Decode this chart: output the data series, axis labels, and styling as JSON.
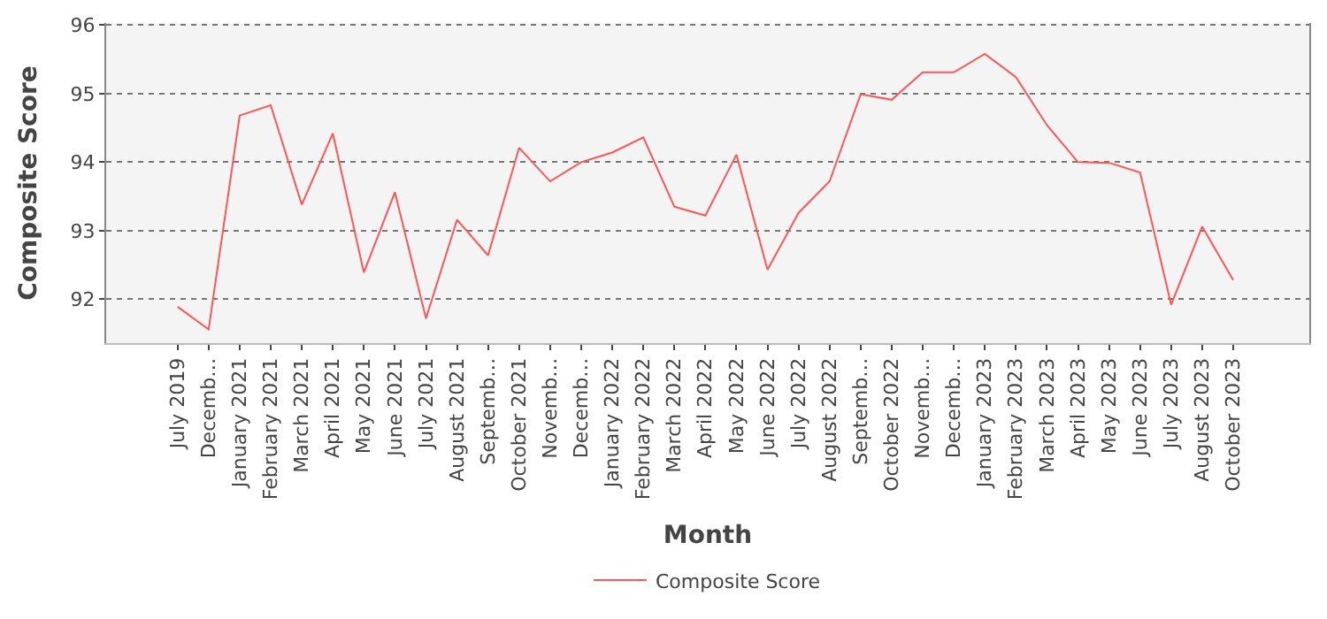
{
  "chart_data": {
    "type": "line",
    "xlabel": "Month",
    "ylabel": "Composite Score",
    "categories": [
      "July 2019",
      "Decemb…",
      "January 2021",
      "February 2021",
      "March 2021",
      "April 2021",
      "May 2021",
      "June 2021",
      "July 2021",
      "August 2021",
      "Septemb…",
      "October 2021",
      "Novemb…",
      "Decemb…",
      "January 2022",
      "February 2022",
      "March 2022",
      "April 2022",
      "May 2022",
      "June 2022",
      "July 2022",
      "August 2022",
      "Septemb…",
      "October 2022",
      "Novemb…",
      "Decemb…",
      "January 2023",
      "February 2023",
      "March 2023",
      "April 2023",
      "May 2023",
      "June 2023",
      "July 2023",
      "August 2023",
      "October 2023"
    ],
    "series": [
      {
        "name": "Composite Score",
        "color": "#ff5555",
        "values": [
          91.89,
          91.56,
          94.68,
          94.83,
          93.38,
          94.42,
          92.39,
          93.56,
          91.72,
          93.16,
          92.64,
          94.21,
          93.72,
          94.0,
          94.14,
          94.36,
          93.35,
          93.22,
          94.11,
          92.43,
          93.26,
          93.72,
          94.99,
          94.91,
          95.31,
          95.31,
          95.58,
          95.24,
          94.54,
          94.0,
          93.99,
          93.85,
          91.92,
          93.06,
          92.28
        ]
      }
    ],
    "ylim": [
      91.36,
      96.03
    ],
    "yticks": [
      92,
      93,
      94,
      95,
      96
    ],
    "grid": "y",
    "legend": "bottom",
    "marker": "none",
    "line_style": "solid"
  }
}
